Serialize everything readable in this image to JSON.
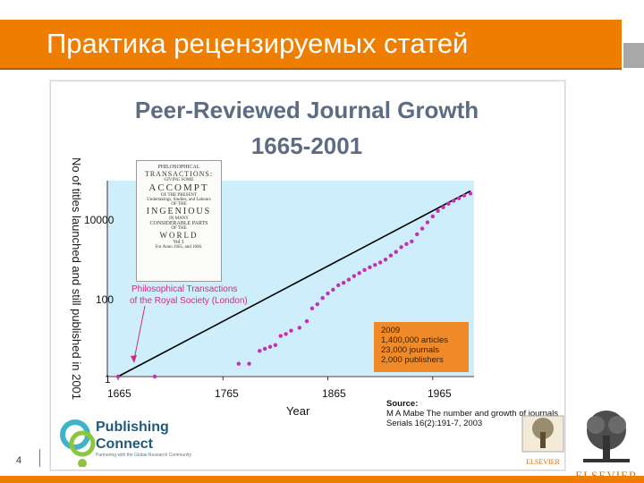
{
  "slide": {
    "title": "Практика рецензируемых статей",
    "page_number": "4"
  },
  "graph": {
    "title_line1": "Peer-Reviewed Journal Growth",
    "title_line2": "1665-2001",
    "ylabel": "No of titles launched and still published in 2001",
    "xlabel": "Year",
    "yticks": [
      "10000",
      "100",
      "1"
    ],
    "xticks": [
      "1665",
      "1765",
      "1865",
      "1965"
    ],
    "annotation_line1": "Philosophical Transactions",
    "annotation_line2": "of the Royal Society (London)",
    "info_box": [
      "2009",
      "1,400,000 articles",
      "23,000 journals",
      "2,000 publishers"
    ],
    "source_label": "Source:",
    "source_line1": "M A Mabe The number and growth of journals",
    "source_line2": "Serials 16(2):191-7, 2003"
  },
  "inset": {
    "lines": [
      "PHILOSOPHICAL",
      "TRANSACTIONS:",
      "GIVING SOME",
      "ACCOMPT",
      "OF THE PRESENT",
      "Undertakings, Studies, and Labours",
      "OF THE",
      "INGENIOUS",
      "IN MANY",
      "CONSIDERABLE PARTS",
      "OF THE",
      "WORLD",
      "Vol I.",
      "For Anno 1665, and 1666."
    ]
  },
  "logos": {
    "publishing_connect_line1": "Publishing",
    "publishing_connect_line2": "Connect",
    "publishing_connect_tagline": "Partnering with the Global Research Community",
    "elsevier_small": "ELSEVIER",
    "elsevier_big": "ELSEVIER"
  },
  "colors": {
    "accent_orange": "#ef7d00",
    "graph_title": "#5b6c83",
    "plot_bg": "#cdeefa",
    "data_points": "#c52fb5",
    "trend_line": "#000000",
    "info_box": "#f08a28"
  },
  "chart_data": {
    "type": "scatter",
    "title": "Peer-Reviewed Journal Growth 1665-2001",
    "xlabel": "Year",
    "ylabel": "No of titles launched and still published in 2001",
    "y_scale": "log",
    "xlim": [
      1665,
      2001
    ],
    "ylim": [
      1,
      30000
    ],
    "x_ticks": [
      1665,
      1765,
      1865,
      1965
    ],
    "y_ticks": [
      1,
      100,
      10000
    ],
    "series": [
      {
        "x": [
          1665,
          1700,
          1780,
          1790,
          1800,
          1805,
          1810,
          1815,
          1820,
          1825,
          1830,
          1838,
          1845,
          1850,
          1855,
          1860,
          1865,
          1870,
          1875,
          1880,
          1885,
          1890,
          1895,
          1900,
          1905,
          1910,
          1915,
          1920,
          1925,
          1930,
          1935,
          1940,
          1945,
          1950,
          1955,
          1960,
          1965,
          1970,
          1975,
          1980,
          1985,
          1990,
          1995,
          2001
        ],
        "y": [
          1,
          1,
          2,
          2,
          4,
          4.5,
          5,
          5.5,
          9,
          10,
          12,
          14,
          20,
          40,
          50,
          70,
          90,
          110,
          140,
          160,
          190,
          230,
          270,
          320,
          370,
          420,
          480,
          560,
          700,
          850,
          1100,
          1300,
          1500,
          2200,
          3000,
          4200,
          5800,
          7800,
          9500,
          11500,
          13500,
          15500,
          18000,
          20000
        ]
      }
    ],
    "trend": {
      "x": [
        1665,
        2001
      ],
      "y": [
        1,
        23000
      ]
    },
    "grid": false,
    "legend": "none"
  }
}
